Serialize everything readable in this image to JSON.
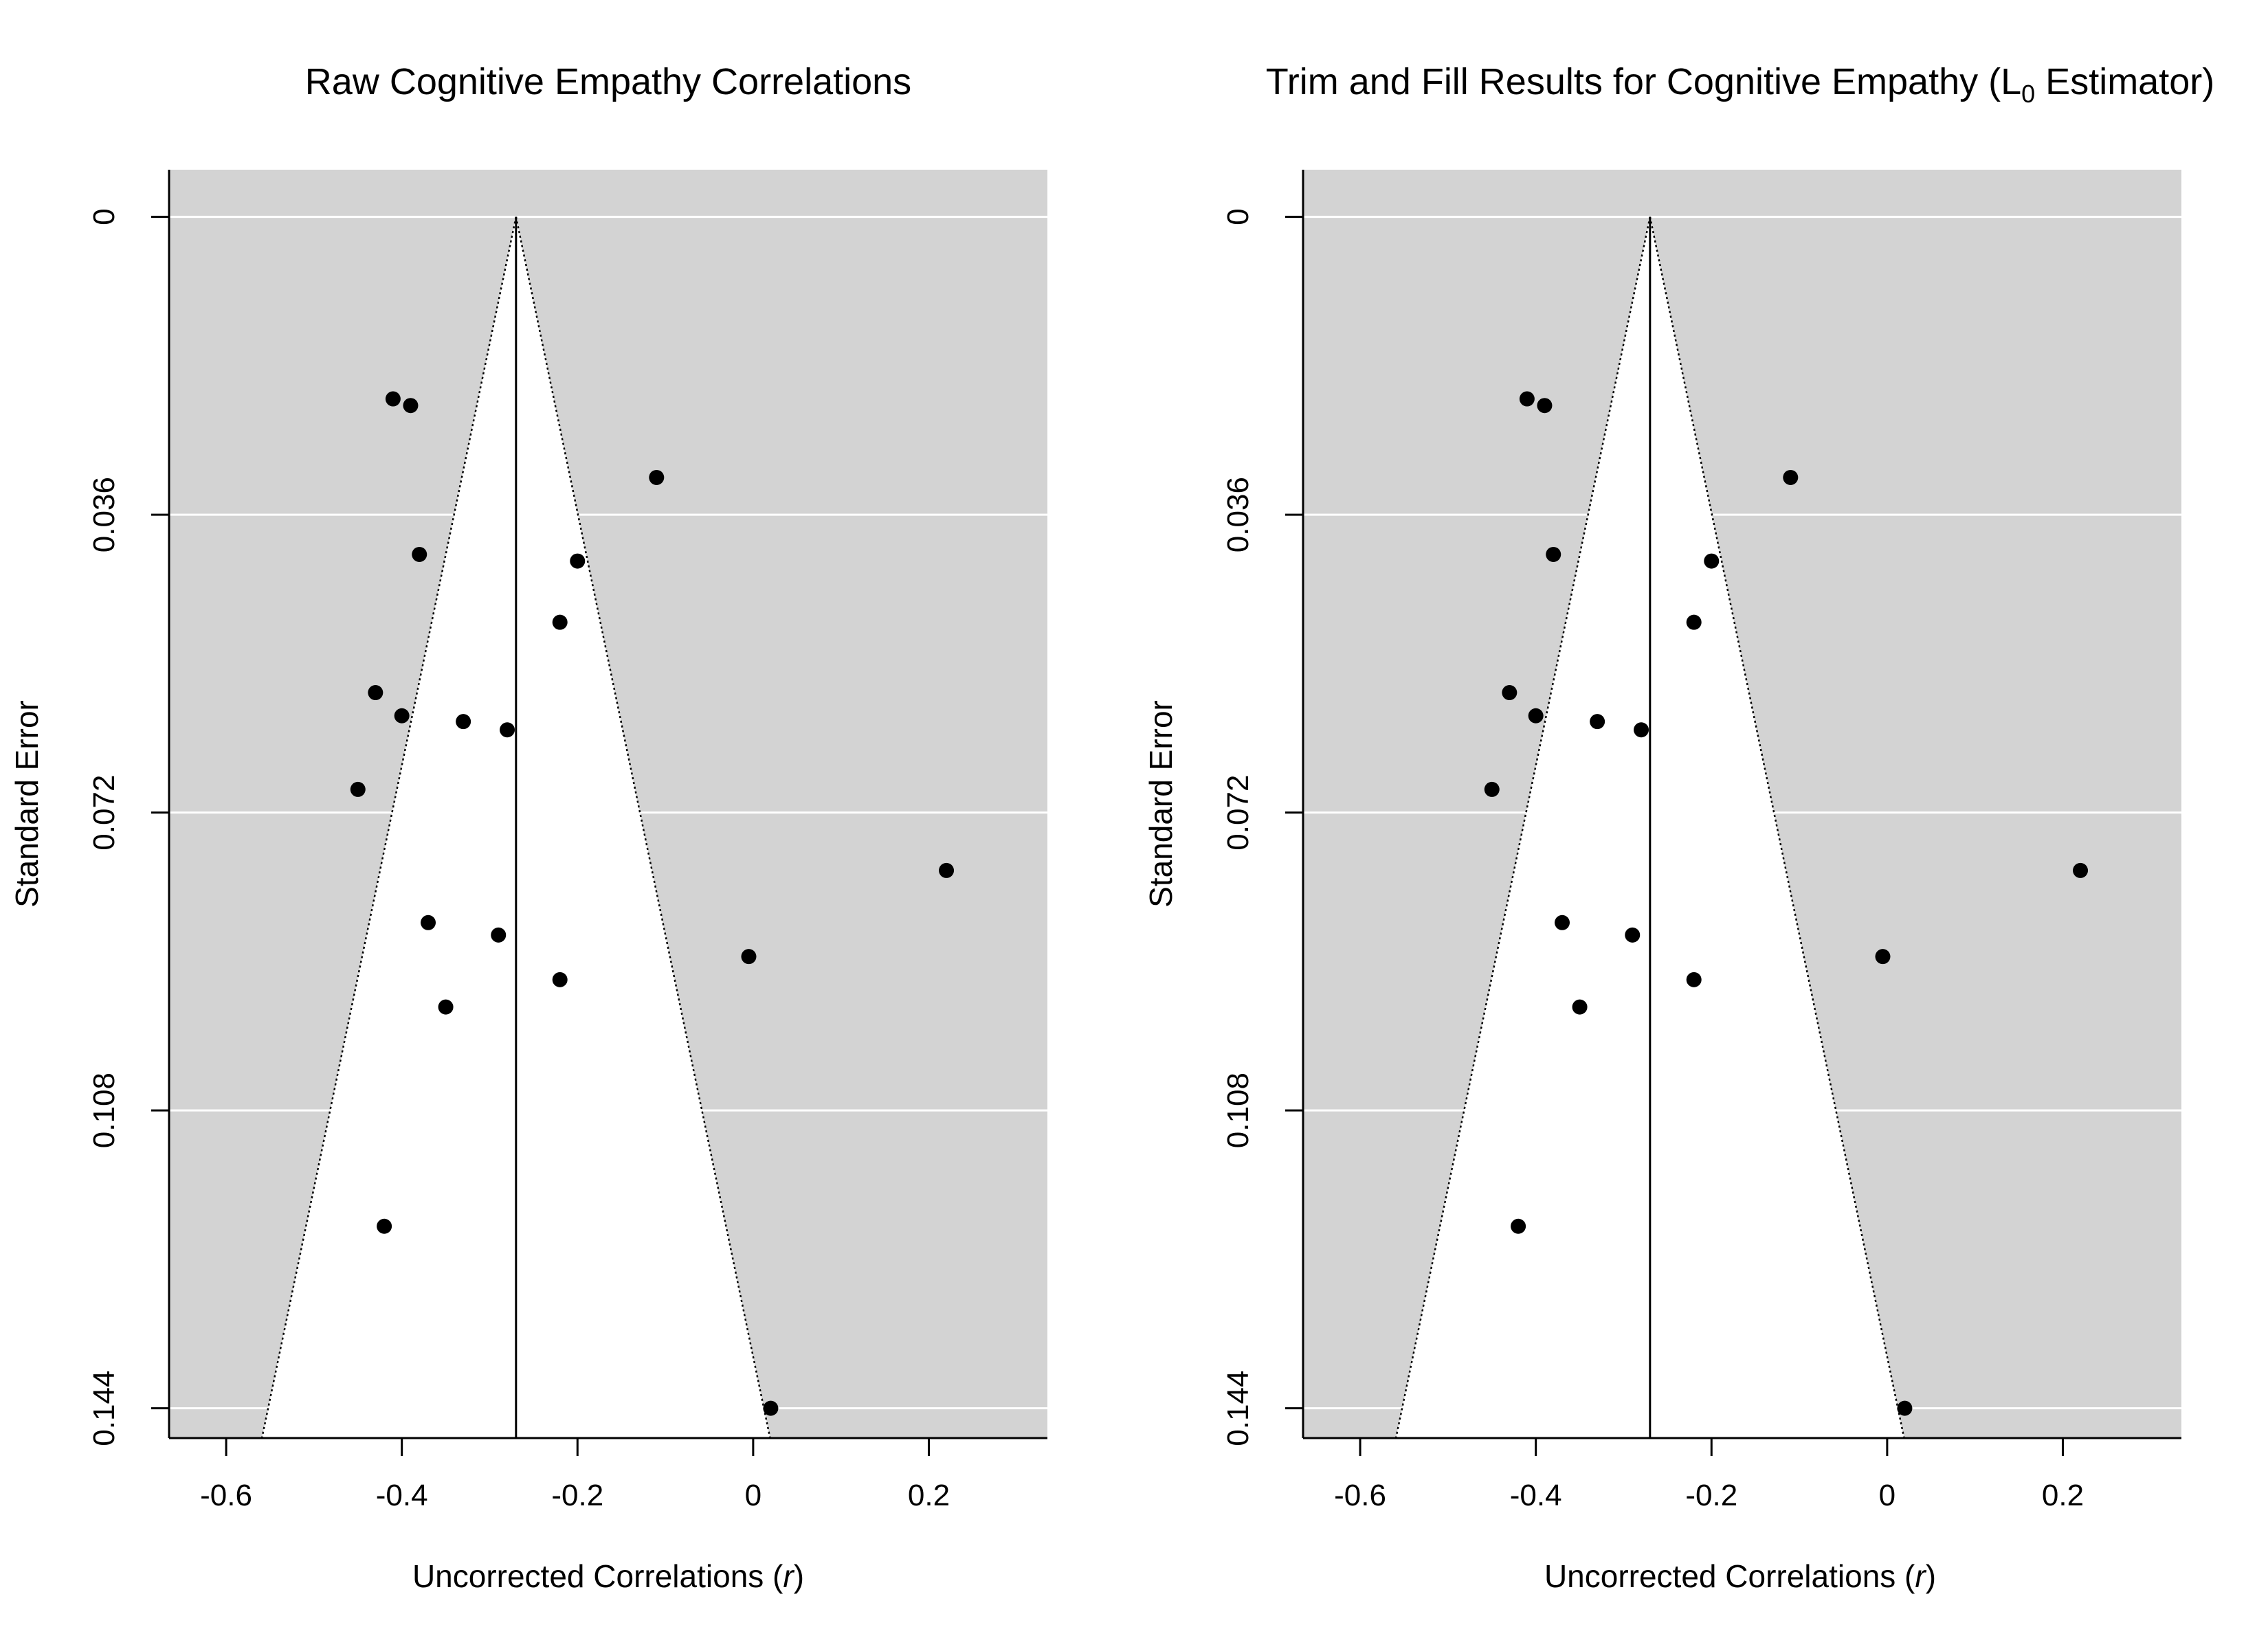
{
  "colors": {
    "panel_bg": "#d3d3d3",
    "funnel_fill": "#ffffff",
    "grid": "#ffffff",
    "points": "#000000",
    "axis": "#000000"
  },
  "chart_data": [
    {
      "type": "scatter",
      "subtype": "funnel-plot",
      "title": "Raw Cognitive Empathy Correlations",
      "title_sub": "",
      "title_tail": "",
      "xlabel_prefix": "Uncorrected Correlations (",
      "xlabel_italic": "r",
      "xlabel_suffix": ")",
      "ylabel": "Standard Error",
      "xlim": [
        -0.665,
        0.335
      ],
      "ylim": [
        0.1476,
        -0.0057
      ],
      "y_reversed": true,
      "xticks": [
        -0.6,
        -0.4,
        -0.2,
        0,
        0.2
      ],
      "xtick_labels": [
        "-0.6",
        "-0.4",
        "-0.2",
        "0",
        "0.2"
      ],
      "yticks": [
        0,
        0.036,
        0.072,
        0.108,
        0.144
      ],
      "ytick_labels": [
        "0",
        "0.036",
        "0.072",
        "0.108",
        "0.144"
      ],
      "grid_y": true,
      "funnel_center": -0.27,
      "funnel_z": 1.96,
      "points": [
        {
          "x": -0.41,
          "y": 0.022
        },
        {
          "x": -0.39,
          "y": 0.0228
        },
        {
          "x": -0.11,
          "y": 0.0315
        },
        {
          "x": -0.38,
          "y": 0.0408
        },
        {
          "x": -0.2,
          "y": 0.0416
        },
        {
          "x": -0.22,
          "y": 0.049
        },
        {
          "x": -0.43,
          "y": 0.0575
        },
        {
          "x": -0.4,
          "y": 0.0603
        },
        {
          "x": -0.33,
          "y": 0.061
        },
        {
          "x": -0.28,
          "y": 0.062
        },
        {
          "x": -0.45,
          "y": 0.0692
        },
        {
          "x": 0.22,
          "y": 0.079
        },
        {
          "x": -0.37,
          "y": 0.0853
        },
        {
          "x": -0.29,
          "y": 0.0868
        },
        {
          "x": -0.005,
          "y": 0.0894
        },
        {
          "x": -0.22,
          "y": 0.0922
        },
        {
          "x": -0.35,
          "y": 0.0955
        },
        {
          "x": -0.42,
          "y": 0.122
        },
        {
          "x": 0.02,
          "y": 0.144
        }
      ]
    },
    {
      "type": "scatter",
      "subtype": "funnel-plot",
      "title": "Trim and Fill Results for Cognitive Empathy (L",
      "title_sub": "0",
      "title_tail": " Estimator)",
      "xlabel_prefix": "Uncorrected Correlations (",
      "xlabel_italic": "r",
      "xlabel_suffix": ")",
      "ylabel": "Standard Error",
      "xlim": [
        -0.665,
        0.335
      ],
      "ylim": [
        0.1476,
        -0.0057
      ],
      "y_reversed": true,
      "xticks": [
        -0.6,
        -0.4,
        -0.2,
        0,
        0.2
      ],
      "xtick_labels": [
        "-0.6",
        "-0.4",
        "-0.2",
        "0",
        "0.2"
      ],
      "yticks": [
        0,
        0.036,
        0.072,
        0.108,
        0.144
      ],
      "ytick_labels": [
        "0",
        "0.036",
        "0.072",
        "0.108",
        "0.144"
      ],
      "grid_y": true,
      "funnel_center": -0.27,
      "funnel_z": 1.96,
      "points": [
        {
          "x": -0.41,
          "y": 0.022
        },
        {
          "x": -0.39,
          "y": 0.0228
        },
        {
          "x": -0.11,
          "y": 0.0315
        },
        {
          "x": -0.38,
          "y": 0.0408
        },
        {
          "x": -0.2,
          "y": 0.0416
        },
        {
          "x": -0.22,
          "y": 0.049
        },
        {
          "x": -0.43,
          "y": 0.0575
        },
        {
          "x": -0.4,
          "y": 0.0603
        },
        {
          "x": -0.33,
          "y": 0.061
        },
        {
          "x": -0.28,
          "y": 0.062
        },
        {
          "x": -0.45,
          "y": 0.0692
        },
        {
          "x": 0.22,
          "y": 0.079
        },
        {
          "x": -0.37,
          "y": 0.0853
        },
        {
          "x": -0.29,
          "y": 0.0868
        },
        {
          "x": -0.005,
          "y": 0.0894
        },
        {
          "x": -0.22,
          "y": 0.0922
        },
        {
          "x": -0.35,
          "y": 0.0955
        },
        {
          "x": -0.42,
          "y": 0.122
        },
        {
          "x": 0.02,
          "y": 0.144
        }
      ]
    }
  ]
}
